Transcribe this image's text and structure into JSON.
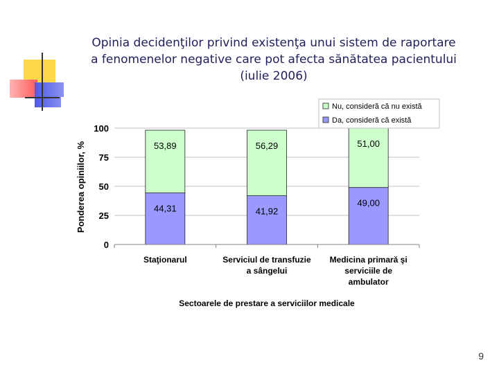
{
  "slide": {
    "title_lines": [
      "Opinia decidenţilor privind existenţa unui sistem de raportare",
      "a fenomenelor negative care pot afecta sănătatea pacientului",
      "(iulie 2006)"
    ],
    "page_number": "9"
  },
  "colors": {
    "accent_yellow": "#ffd84a",
    "accent_red": "#ff5a5a",
    "accent_blue": "#4f5ae8",
    "bar_green": "#ccffcc",
    "bar_blue": "#9999ff",
    "grid": "#c0c0c0"
  },
  "chart_data": {
    "type": "bar",
    "stacked": true,
    "title": "",
    "xlabel": "Sectoarele de prestare a serviciilor medicale",
    "ylabel": "Ponderea opiniilor, %",
    "ylim": [
      0,
      100
    ],
    "yticks": [
      0,
      25,
      50,
      75,
      100
    ],
    "grid": true,
    "legend_position": "top-right",
    "categories": [
      [
        "Staţionarul"
      ],
      [
        "Serviciul de transfuzie",
        "a sângelui"
      ],
      [
        "Medicina primară şi",
        "serviciile de",
        "ambulator"
      ]
    ],
    "series": [
      {
        "name": "Da, consideră că există",
        "values": [
          44.31,
          41.92,
          49.0
        ],
        "labels": [
          "44,31",
          "41,92",
          "49,00"
        ],
        "color": "#9999ff"
      },
      {
        "name": "Nu, consideră că nu există",
        "values": [
          53.89,
          56.29,
          51.0
        ],
        "labels": [
          "53,89",
          "56,29",
          "51,00"
        ],
        "color": "#ccffcc"
      }
    ]
  }
}
